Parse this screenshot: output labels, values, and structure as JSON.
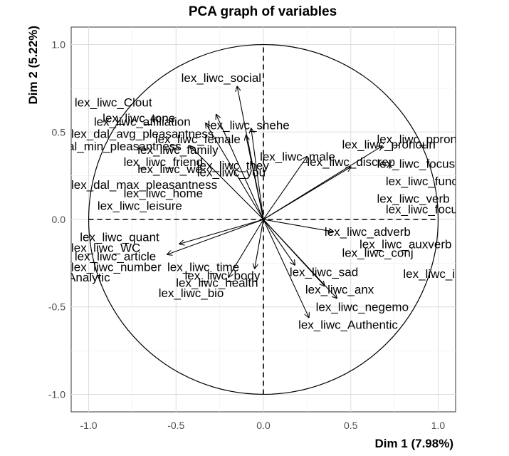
{
  "chart_data": {
    "type": "scatter",
    "title": "PCA graph of variables",
    "xlabel": "Dim 1 (7.98%)",
    "ylabel": "Dim 2 (5.22%)",
    "xlim": [
      -1.1,
      1.1
    ],
    "ylim": [
      -1.1,
      1.1
    ],
    "x_ticks": [
      "-1.0",
      "-0.5",
      "0.0",
      "0.5",
      "1.0"
    ],
    "y_ticks": [
      "-1.0",
      "-0.5",
      "0.0",
      "0.5",
      "1.0"
    ],
    "grid": true,
    "unit_circle": true,
    "labelled_variables": [
      {
        "name": "lex_liwc_social",
        "x": -0.15,
        "y": 0.76
      },
      {
        "name": "lex_liwc_Clout",
        "x": -0.27,
        "y": 0.6
      },
      {
        "name": "lex_liwc_tone",
        "x": -0.33,
        "y": 0.55
      },
      {
        "name": "lex_liwc_shehe",
        "x": -0.07,
        "y": 0.52
      },
      {
        "name": "lex_dal_avg_pleasantness",
        "x": -0.1,
        "y": 0.48
      },
      {
        "name": "lex_liwc_male",
        "x": 0.25,
        "y": 0.36
      },
      {
        "name": "lex_liwc_pronoun",
        "x": 0.68,
        "y": 0.42
      },
      {
        "name": "lex_liwc_discrep",
        "x": 0.5,
        "y": 0.3
      },
      {
        "name": "lex_liwc_adverb",
        "x": 0.4,
        "y": -0.07
      },
      {
        "name": "lex_liwc_sad",
        "x": 0.18,
        "y": -0.26
      },
      {
        "name": "lex_liwc_anx",
        "x": 0.35,
        "y": -0.38
      },
      {
        "name": "lex_liwc_negemo",
        "x": 0.42,
        "y": -0.45
      },
      {
        "name": "lex_liwc_Authentic",
        "x": 0.26,
        "y": -0.56
      },
      {
        "name": "lex_liwc_health",
        "x": -0.05,
        "y": -0.28
      },
      {
        "name": "lex_liwc_bio",
        "x": -0.2,
        "y": -0.33
      },
      {
        "name": "lex_liwc_Analytic",
        "x": -0.55,
        "y": -0.2
      },
      {
        "name": "lex_liwc_article",
        "x": -0.48,
        "y": -0.14
      },
      {
        "name": "lex_dal_min_pleasantness",
        "x": -0.42,
        "y": 0.42
      }
    ],
    "visible_labels": [
      {
        "text": "lex_liwc_social",
        "x": -0.47,
        "y": 0.81
      },
      {
        "text": "lex_liwc_Clout",
        "x": -1.08,
        "y": 0.67
      },
      {
        "text": "lex_liwc_tone",
        "x": -0.92,
        "y": 0.58
      },
      {
        "text": "lex_liwc_affiliation",
        "x": -0.97,
        "y": 0.56
      },
      {
        "text": "lex_liwc_shehe",
        "x": -0.32,
        "y": 0.54
      },
      {
        "text": "lex_dal_avg_pleasantness",
        "x": -1.1,
        "y": 0.49
      },
      {
        "text": "lex_liwc_female",
        "x": -0.62,
        "y": 0.46
      },
      {
        "text": "al_min_pleasantness",
        "x": -1.12,
        "y": 0.42
      },
      {
        "text": "lex_liwc_family",
        "x": -0.72,
        "y": 0.4
      },
      {
        "text": "lex_liwc_friend",
        "x": -0.8,
        "y": 0.33
      },
      {
        "text": "lex_liwc_we",
        "x": -0.72,
        "y": 0.29
      },
      {
        "text": "lex_liwc_they",
        "x": -0.38,
        "y": 0.31
      },
      {
        "text": "lex_liwc_you",
        "x": -0.38,
        "y": 0.27
      },
      {
        "text": "lex_liwc_male",
        "x": -0.02,
        "y": 0.36
      },
      {
        "text": "lex_liwc_pronoun",
        "x": 0.45,
        "y": 0.43
      },
      {
        "text": "lex_liwc_ppron",
        "x": 0.65,
        "y": 0.46
      },
      {
        "text": "lex_liwc_discrep",
        "x": 0.25,
        "y": 0.33
      },
      {
        "text": "lex_liwc_focusfuture",
        "x": 0.65,
        "y": 0.32
      },
      {
        "text": "lex_liwc_function",
        "x": 0.7,
        "y": 0.22
      },
      {
        "text": "lex_dal_max_pleasantness",
        "x": -1.1,
        "y": 0.2
      },
      {
        "text": "lex_liwc_home",
        "x": -0.8,
        "y": 0.15
      },
      {
        "text": "lex_liwc_leisure",
        "x": -0.95,
        "y": 0.08
      },
      {
        "text": "lex_liwc_verb",
        "x": 0.65,
        "y": 0.12
      },
      {
        "text": "lex_liwc_focuspresent",
        "x": 0.7,
        "y": 0.06
      },
      {
        "text": "lex_liwc_adverb",
        "x": 0.35,
        "y": -0.07
      },
      {
        "text": "lex_liwc_auxverb",
        "x": 0.55,
        "y": -0.14
      },
      {
        "text": "lex_liwc_conj",
        "x": 0.45,
        "y": -0.19
      },
      {
        "text": "lex_liwc_i",
        "x": 0.8,
        "y": -0.31
      },
      {
        "text": "lex_liwc_sad",
        "x": 0.15,
        "y": -0.3
      },
      {
        "text": "lex_liwc_anx",
        "x": 0.24,
        "y": -0.4
      },
      {
        "text": "lex_liwc_negemo",
        "x": 0.3,
        "y": -0.5
      },
      {
        "text": "lex_liwc_Authentic",
        "x": 0.2,
        "y": -0.6
      },
      {
        "text": "lex_liwc_quant",
        "x": -1.05,
        "y": -0.1
      },
      {
        "text": "lex_liwc_WC",
        "x": -1.1,
        "y": -0.16
      },
      {
        "text": "lex_liwc_article",
        "x": -1.08,
        "y": -0.21
      },
      {
        "text": "lex_liwc_number",
        "x": -1.1,
        "y": -0.27
      },
      {
        "text": "Analytic",
        "x": -1.12,
        "y": -0.33
      },
      {
        "text": "lex_liwc_time",
        "x": -0.55,
        "y": -0.27
      },
      {
        "text": "lex_liwc_health",
        "x": -0.5,
        "y": -0.36
      },
      {
        "text": "lex_liwc_body",
        "x": -0.45,
        "y": -0.32
      },
      {
        "text": "lex_liwc_bio",
        "x": -0.6,
        "y": -0.42
      }
    ]
  }
}
